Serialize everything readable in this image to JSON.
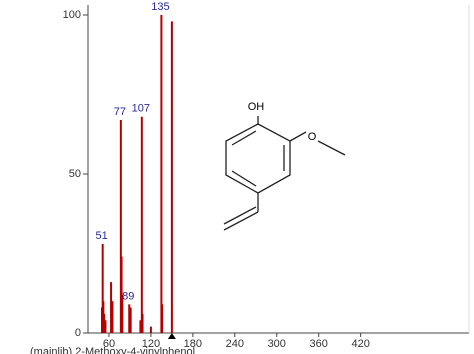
{
  "chart_data": {
    "type": "stick",
    "caption": "(mainlib) 2-Methoxy-4-vinylphenol",
    "x": [
      50,
      51,
      52,
      53,
      55,
      63,
      65,
      77,
      78,
      79,
      89,
      91,
      105,
      107,
      108,
      120,
      135,
      136,
      150
    ],
    "values": [
      8,
      28,
      10,
      6,
      4,
      16,
      10,
      67,
      24,
      12,
      9,
      8,
      4,
      68,
      6,
      2,
      100,
      9,
      98
    ],
    "labeled": [
      1,
      7,
      10,
      13,
      16
    ],
    "color": "#b30000",
    "xlim": [
      30,
      575
    ],
    "xticks": [
      60,
      120,
      180,
      240,
      300,
      360,
      420
    ],
    "ylim": [
      0,
      100
    ],
    "yticks": [
      0,
      50,
      100
    ],
    "structure_labels": [
      "OH",
      "O"
    ]
  }
}
